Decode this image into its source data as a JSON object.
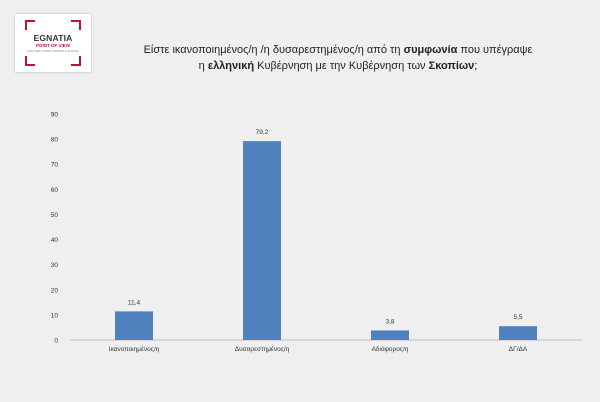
{
  "logo": {
    "name": "EGNATIA",
    "subtitle": "POINT OF VIEW",
    "tagline": "ΕΡΕΥΝΕΣ ΚΟΙΝΗΣ ΓΝΩΜΗΣ & ΑΓΟΡΑΣ"
  },
  "title": {
    "line1_a": "Είστε ικανοποιημένος/η /η δυσαρεστημένος/η από τη ",
    "line1_b": "συμφωνία",
    "line1_c": " που υπέγραψε",
    "line2_a": "η ",
    "line2_b": "ελληνική",
    "line2_c": " Κυβέρνηση με την Κυβέρνηση των ",
    "line2_d": "Σκοπίων",
    "line2_e": ";"
  },
  "colors": {
    "bar": "#4f81bd",
    "gridline": "#d9d9d9",
    "axis": "#bfbfbf",
    "text": "#333333"
  },
  "chart_data": {
    "type": "bar",
    "categories": [
      "Ικανοποιημένος/η",
      "Δυσαρεστημένος/η",
      "Αδιάφορος/η",
      "ΔΓ/ΔΑ"
    ],
    "values": [
      11.4,
      79.2,
      3.8,
      5.5
    ],
    "value_labels": [
      "11,4",
      "79,2",
      "3,8",
      "5,5"
    ],
    "ylim": [
      0,
      90
    ],
    "yticks": [
      0,
      10,
      20,
      30,
      40,
      50,
      60,
      70,
      80,
      90
    ],
    "grid": false,
    "legend": "none",
    "xlabel": "",
    "ylabel": ""
  }
}
